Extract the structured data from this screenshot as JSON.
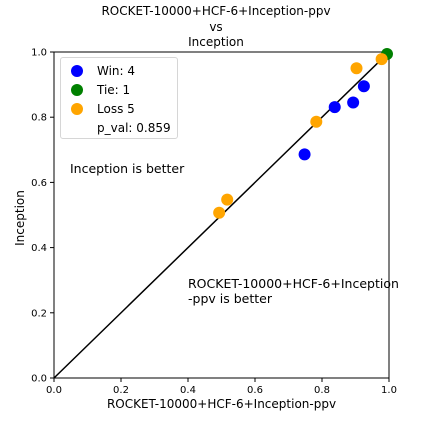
{
  "chart_data": {
    "type": "scatter",
    "title_lines": [
      "ROCKET-10000+HCF-6+Inception-ppv",
      "vs",
      "Inception"
    ],
    "xlabel": "ROCKET-10000+HCF-6+Inception-ppv",
    "ylabel": "Inception",
    "xlim": [
      0,
      1
    ],
    "ylim": [
      0,
      1
    ],
    "xticks": [
      "0.0",
      "0.2",
      "0.4",
      "0.6",
      "0.8",
      "1.0"
    ],
    "yticks": [
      "0.0",
      "0.2",
      "0.4",
      "0.6",
      "0.8",
      "1.0"
    ],
    "grid": false,
    "legend_position": "top-left",
    "diagonal_line": true,
    "series": [
      {
        "name": "Win: 4",
        "color": "#0000ff",
        "points": [
          [
            0.748,
            0.686
          ],
          [
            0.838,
            0.831
          ],
          [
            0.893,
            0.845
          ],
          [
            0.925,
            0.895
          ]
        ]
      },
      {
        "name": "Tie: 1",
        "color": "#008000",
        "points": [
          [
            0.994,
            0.994
          ]
        ]
      },
      {
        "name": "Loss 5",
        "color": "#ffa500",
        "points": [
          [
            0.493,
            0.507
          ],
          [
            0.517,
            0.547
          ],
          [
            0.783,
            0.786
          ],
          [
            0.903,
            0.95
          ],
          [
            0.978,
            0.978
          ]
        ]
      }
    ],
    "p_val_label": "p_val: 0.859",
    "annotations": {
      "upper_left": "Inception is better",
      "lower_right_lines": [
        "ROCKET-10000+HCF-6+Inception",
        "-ppv is better"
      ]
    }
  }
}
